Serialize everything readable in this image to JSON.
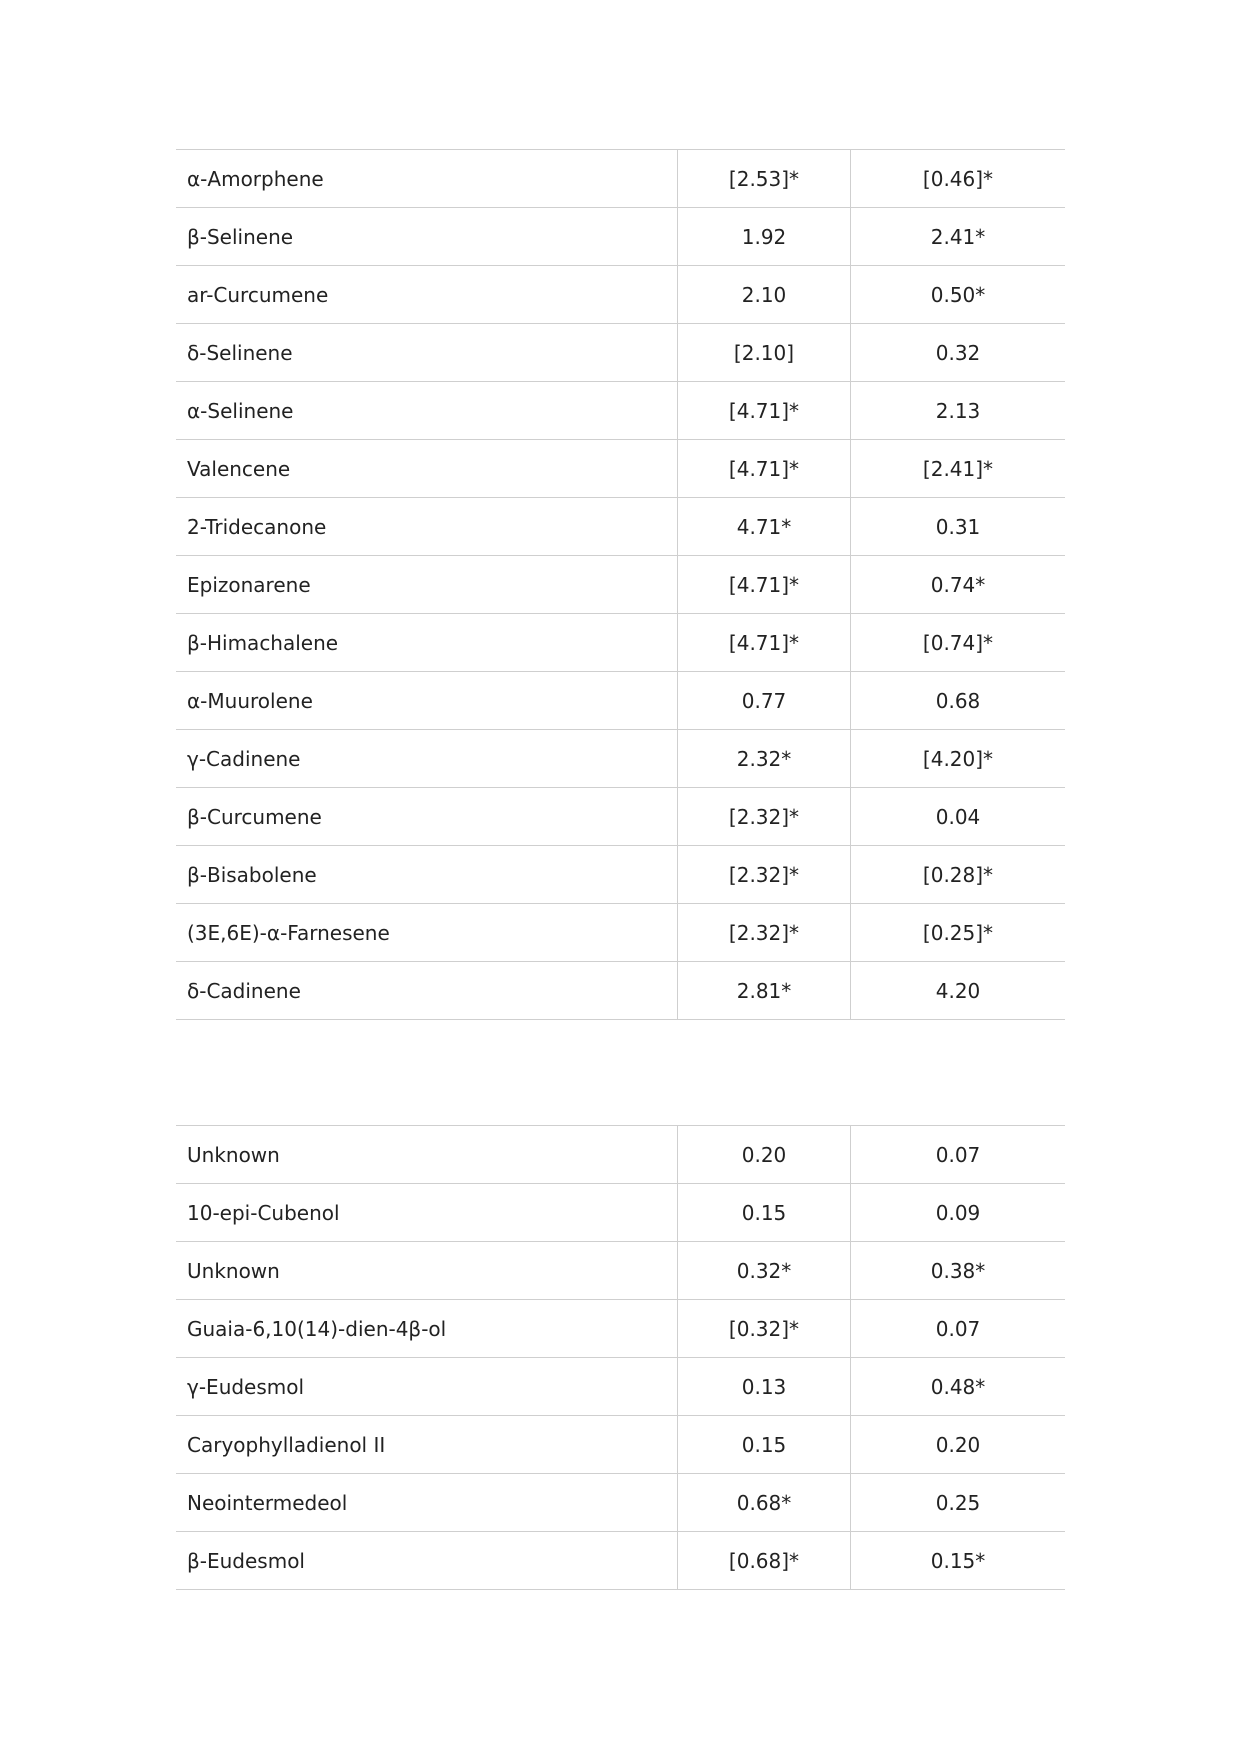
{
  "table1": [
    [
      "α-Amorphene",
      "[2.53]*",
      "[0.46]*"
    ],
    [
      "β-Selinene",
      "1.92",
      "2.41*"
    ],
    [
      "ar-Curcumene",
      "2.10",
      "0.50*"
    ],
    [
      "δ-Selinene",
      "[2.10]",
      "0.32"
    ],
    [
      "α-Selinene",
      "[4.71]*",
      "2.13"
    ],
    [
      "Valencene",
      "[4.71]*",
      "[2.41]*"
    ],
    [
      "2-Tridecanone",
      "4.71*",
      "0.31"
    ],
    [
      "Epizonarene",
      "[4.71]*",
      "0.74*"
    ],
    [
      "β-Himachalene",
      "[4.71]*",
      "[0.74]*"
    ],
    [
      "α-Muurolene",
      "0.77",
      "0.68"
    ],
    [
      "γ-Cadinene",
      "2.32*",
      "[4.20]*"
    ],
    [
      "β-Curcumene",
      "[2.32]*",
      "0.04"
    ],
    [
      "β-Bisabolene",
      "[2.32]*",
      "[0.28]*"
    ],
    [
      "(3E,6E)-α-Farnesene",
      "[2.32]*",
      "[0.25]*"
    ],
    [
      "δ-Cadinene",
      "2.81*",
      "4.20"
    ]
  ],
  "table2": [
    [
      "Unknown",
      "0.20",
      "0.07"
    ],
    [
      "10-epi-Cubenol",
      "0.15",
      "0.09"
    ],
    [
      "Unknown",
      "0.32*",
      "0.38*"
    ],
    [
      "Guaia-6,10(14)-dien-4β-ol",
      "[0.32]*",
      "0.07"
    ],
    [
      "γ-Eudesmol",
      "0.13",
      "0.48*"
    ],
    [
      "Caryophylladienol II",
      "0.15",
      "0.20"
    ],
    [
      "Neointermedeol",
      "0.68*",
      "0.25"
    ],
    [
      "β-Eudesmol",
      "[0.68]*",
      "0.15*"
    ]
  ]
}
